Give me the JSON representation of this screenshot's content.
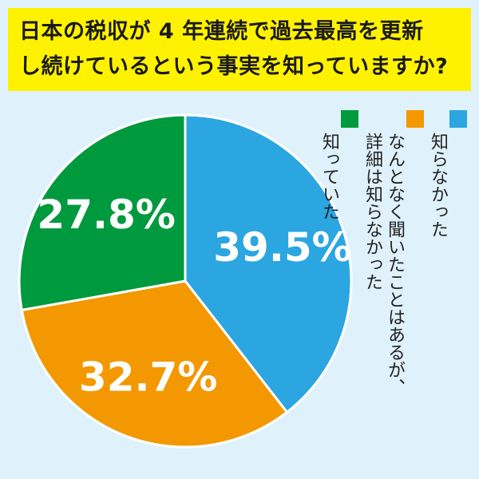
{
  "title": {
    "line1": "日本の税収が 4 年連続で過去最高を更新",
    "line2": "し続けているという事実を知っていますか?"
  },
  "chart_data": {
    "type": "pie",
    "slices": [
      {
        "name": "知らなかった",
        "value": 39.5,
        "label": "39.5%",
        "color": "#2ba6e1"
      },
      {
        "name": "なんとなく聞いたことはあるが、詳細は知らなかった",
        "value": 32.7,
        "label": "32.7%",
        "color": "#f39800"
      },
      {
        "name": "知っていた",
        "value": 27.8,
        "label": "27.8%",
        "color": "#009a3e"
      }
    ],
    "start": "12 o'clock",
    "direction": "clockwise"
  },
  "legend": [
    {
      "lines": [
        "知らなかった"
      ],
      "color": "#2ba6e1"
    },
    {
      "lines": [
        "なんとなく聞いたことはあるが、",
        "詳細は知らなかった"
      ],
      "color": "#f39800"
    },
    {
      "lines": [
        "知っていた"
      ],
      "color": "#009a3e"
    }
  ]
}
